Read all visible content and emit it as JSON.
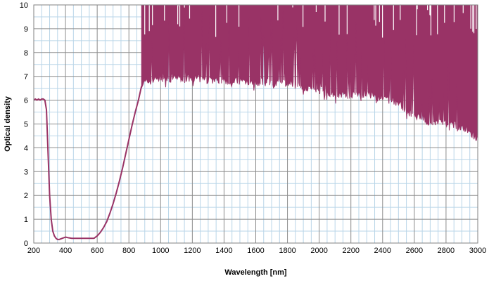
{
  "chart_data": {
    "type": "line",
    "title": "",
    "xlabel": "Wavelength [nm]",
    "ylabel": "Optical density",
    "xlim": [
      200,
      3000
    ],
    "ylim": [
      0,
      10
    ],
    "x_ticks": [
      "200",
      "400",
      "600",
      "800",
      "1000",
      "1200",
      "1400",
      "1600",
      "1800",
      "2000",
      "2200",
      "2400",
      "2600",
      "2800",
      "3000"
    ],
    "y_ticks": [
      "0",
      "1",
      "2",
      "3",
      "4",
      "5",
      "6",
      "7",
      "8",
      "9",
      "10"
    ],
    "grid": true,
    "legend": "none",
    "colors": {
      "series": "#993366",
      "grid_minor": "#b9d5e8",
      "grid_major": "#8c8c8c"
    },
    "series": [
      {
        "smooth_part": {
          "x": [
            200,
            210,
            220,
            230,
            240,
            250,
            260,
            270,
            280,
            290,
            300,
            310,
            320,
            330,
            340,
            350,
            360,
            380,
            400,
            420,
            440,
            460,
            480,
            500,
            520,
            540,
            560,
            580,
            600,
            620,
            640,
            660,
            680,
            700,
            720,
            740,
            760,
            780,
            800,
            820,
            840,
            860,
            870,
            880
          ],
          "y": [
            6.0,
            6.05,
            6.0,
            6.05,
            6.0,
            6.05,
            6.05,
            6.0,
            5.6,
            3.8,
            2.0,
            1.0,
            0.5,
            0.3,
            0.2,
            0.15,
            0.15,
            0.2,
            0.25,
            0.22,
            0.2,
            0.2,
            0.2,
            0.2,
            0.2,
            0.2,
            0.2,
            0.2,
            0.3,
            0.45,
            0.65,
            0.9,
            1.25,
            1.65,
            2.1,
            2.6,
            3.15,
            3.75,
            4.35,
            4.95,
            5.5,
            6.0,
            6.3,
            6.6
          ]
        },
        "noisy_envelope": {
          "x": [
            880,
            920,
            1000,
            1100,
            1200,
            1300,
            1400,
            1500,
            1600,
            1700,
            1800,
            1900,
            2000,
            2100,
            2200,
            2300,
            2400,
            2500,
            2600,
            2700,
            2800,
            2900,
            3000
          ],
          "lower": [
            6.5,
            6.6,
            6.8,
            6.8,
            6.75,
            6.7,
            6.65,
            6.65,
            6.6,
            6.55,
            6.55,
            6.4,
            6.25,
            6.1,
            6.05,
            6.1,
            5.95,
            5.7,
            5.2,
            4.9,
            4.85,
            4.7,
            4.2
          ],
          "upper": [
            10,
            10,
            10,
            10,
            10,
            10,
            10,
            10,
            10,
            10,
            10,
            10,
            10,
            10,
            10,
            10,
            10,
            10,
            10,
            10,
            10,
            10,
            10
          ]
        }
      }
    ]
  }
}
